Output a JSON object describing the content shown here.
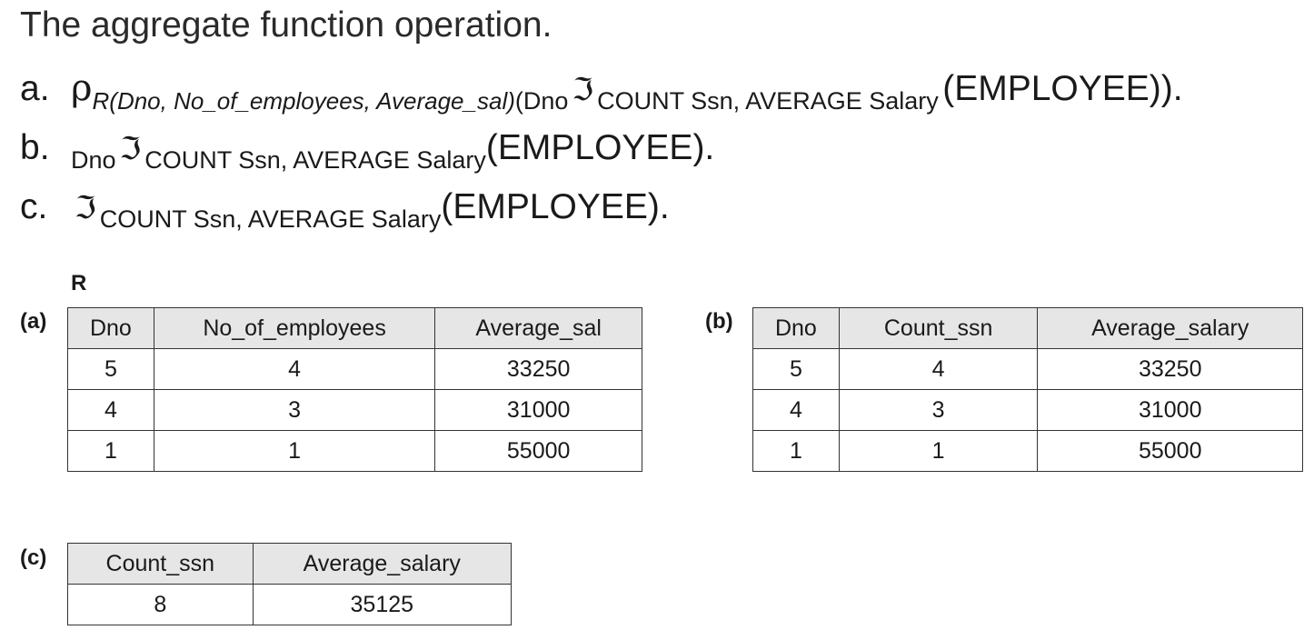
{
  "title": "The aggregate function operation.",
  "expressions": {
    "a": {
      "letter": "a.",
      "rho": "ρ",
      "rename": "R(Dno, No_of_employees, Average_sal)",
      "open_paren": "(",
      "grouping": "Dno",
      "fraktur": "ℑ",
      "functions": "COUNT Ssn, AVERAGE Salary",
      "relation": "(EMPLOYEE))."
    },
    "b": {
      "letter": "b.",
      "grouping": "Dno",
      "fraktur": "ℑ",
      "functions": "COUNT Ssn, AVERAGE Salary",
      "relation": "(EMPLOYEE)."
    },
    "c": {
      "letter": "c.",
      "fraktur": "ℑ",
      "functions": "COUNT Ssn, AVERAGE Salary",
      "relation": "(EMPLOYEE)."
    }
  },
  "relation_name": "R",
  "tables": {
    "a": {
      "tag": "(a)",
      "columns": [
        "Dno",
        "No_of_employees",
        "Average_sal"
      ],
      "rows": [
        [
          "5",
          "4",
          "33250"
        ],
        [
          "4",
          "3",
          "31000"
        ],
        [
          "1",
          "1",
          "55000"
        ]
      ]
    },
    "b": {
      "tag": "(b)",
      "columns": [
        "Dno",
        "Count_ssn",
        "Average_salary"
      ],
      "rows": [
        [
          "5",
          "4",
          "33250"
        ],
        [
          "4",
          "3",
          "31000"
        ],
        [
          "1",
          "1",
          "55000"
        ]
      ]
    },
    "c": {
      "tag": "(c)",
      "columns": [
        "Count_ssn",
        "Average_salary"
      ],
      "rows": [
        [
          "8",
          "35125"
        ]
      ]
    }
  }
}
